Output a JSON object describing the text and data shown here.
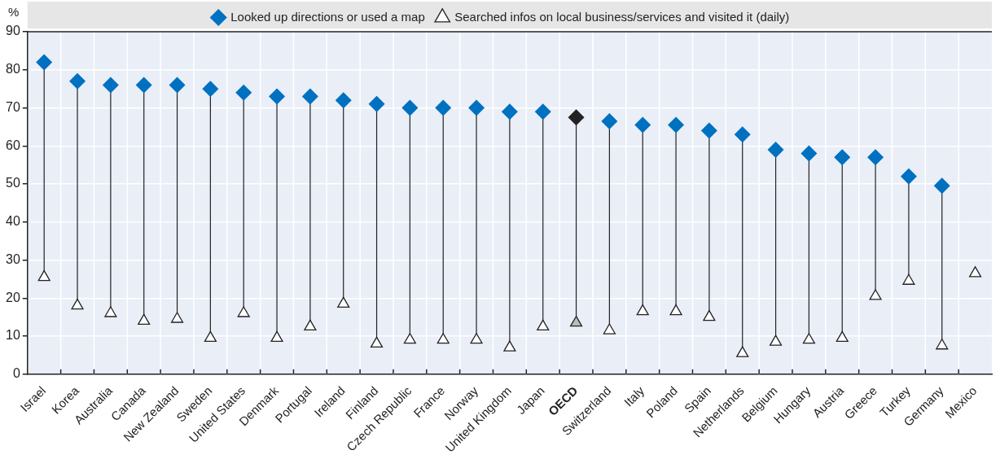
{
  "chart_data": {
    "type": "scatter",
    "ylabel": "%",
    "categories": [
      "Israel",
      "Korea",
      "Australia",
      "Canada",
      "New Zealand",
      "Sweden",
      "United States",
      "Denmark",
      "Portugal",
      "Ireland",
      "Finland",
      "Czech Republic",
      "France",
      "Norway",
      "United Kingdom",
      "Japan",
      "OECD",
      "Switzerland",
      "Italy",
      "Poland",
      "Spain",
      "Netherlands",
      "Belgium",
      "Hungary",
      "Austria",
      "Greece",
      "Turkey",
      "Germany",
      "Mexico"
    ],
    "series": [
      {
        "name": "Looked up directions or used a map",
        "marker": "diamond",
        "color": "#0070c0",
        "colors": [
          "#0070c0",
          "#0070c0",
          "#0070c0",
          "#0070c0",
          "#0070c0",
          "#0070c0",
          "#0070c0",
          "#0070c0",
          "#0070c0",
          "#0070c0",
          "#0070c0",
          "#0070c0",
          "#0070c0",
          "#0070c0",
          "#0070c0",
          "#0070c0",
          "#222222",
          "#0070c0",
          "#0070c0",
          "#0070c0",
          "#0070c0",
          "#0070c0",
          "#0070c0",
          "#0070c0",
          "#0070c0",
          "#0070c0",
          "#0070c0",
          "#0070c0",
          "#0070c0"
        ],
        "values": [
          82,
          77,
          76,
          76,
          76,
          75,
          74,
          73,
          73,
          72,
          71,
          70,
          70,
          70,
          69,
          69,
          67.5,
          66.5,
          65.5,
          65.5,
          64,
          63,
          59,
          58,
          57,
          57,
          52,
          49.5,
          null
        ]
      },
      {
        "name": "Searched infos on local business/services and visited it (daily)",
        "marker": "triangle",
        "color": "#ffffff",
        "colors": [
          "#ffffff",
          "#ffffff",
          "#ffffff",
          "#ffffff",
          "#ffffff",
          "#ffffff",
          "#ffffff",
          "#ffffff",
          "#ffffff",
          "#ffffff",
          "#ffffff",
          "#ffffff",
          "#ffffff",
          "#ffffff",
          "#ffffff",
          "#ffffff",
          "#bbbbbb",
          "#ffffff",
          "#ffffff",
          "#ffffff",
          "#ffffff",
          "#ffffff",
          "#ffffff",
          "#ffffff",
          "#ffffff",
          "#ffffff",
          "#ffffff",
          "#ffffff",
          "#ffffff"
        ],
        "values": [
          25.5,
          18,
          16,
          14,
          14.5,
          9.5,
          16,
          9.5,
          12.5,
          18.5,
          8,
          9,
          9,
          9,
          7,
          12.5,
          13.5,
          11.5,
          16.5,
          16.5,
          15,
          5.5,
          8.5,
          9,
          9.5,
          20.5,
          24.5,
          7.5,
          26.5
        ]
      }
    ],
    "ylim": [
      0,
      90
    ],
    "yticks": [
      0,
      10,
      20,
      30,
      40,
      50,
      60,
      70,
      80,
      90
    ],
    "grid": true,
    "legend": "top"
  }
}
